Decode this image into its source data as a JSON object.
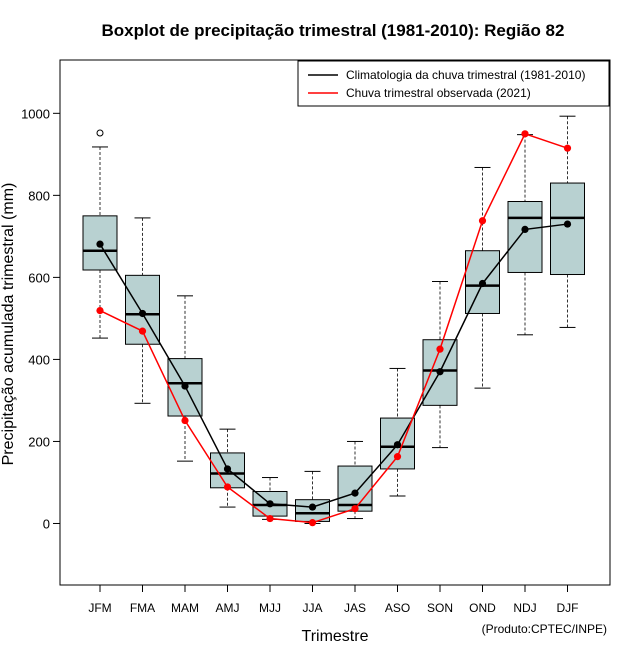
{
  "chart_data": {
    "type": "boxplot",
    "title": "Boxplot de precipitação trimestral (1981-2010): Região 82",
    "xlabel": "Trimestre",
    "ylabel": "Precipitação acumulada trimestral (mm)",
    "ylim": [
      -150,
      1130
    ],
    "yticks": [
      0,
      200,
      400,
      600,
      800,
      1000
    ],
    "credit": "(Produto:CPTEC/INPE)",
    "categories": [
      "JFM",
      "FMA",
      "MAM",
      "AMJ",
      "MJJ",
      "JJA",
      "JAS",
      "ASO",
      "SON",
      "OND",
      "NDJ",
      "DJF"
    ],
    "boxes": [
      {
        "min": 452,
        "q1": 618,
        "median": 665,
        "q3": 750,
        "max": 918,
        "outliers": [
          952
        ]
      },
      {
        "min": 293,
        "q1": 437,
        "median": 510,
        "q3": 605,
        "max": 745,
        "outliers": []
      },
      {
        "min": 152,
        "q1": 262,
        "median": 342,
        "q3": 402,
        "max": 555,
        "outliers": []
      },
      {
        "min": 40,
        "q1": 87,
        "median": 122,
        "q3": 172,
        "max": 230,
        "outliers": []
      },
      {
        "min": 10,
        "q1": 18,
        "median": 45,
        "q3": 78,
        "max": 112,
        "outliers": []
      },
      {
        "min": 0,
        "q1": 5,
        "median": 25,
        "q3": 58,
        "max": 127,
        "outliers": []
      },
      {
        "min": 12,
        "q1": 30,
        "median": 45,
        "q3": 140,
        "max": 200,
        "outliers": []
      },
      {
        "min": 67,
        "q1": 133,
        "median": 187,
        "q3": 257,
        "max": 378,
        "outliers": []
      },
      {
        "min": 185,
        "q1": 288,
        "median": 373,
        "q3": 448,
        "max": 590,
        "outliers": []
      },
      {
        "min": 330,
        "q1": 512,
        "median": 580,
        "q3": 665,
        "max": 868,
        "outliers": []
      },
      {
        "min": 460,
        "q1": 612,
        "median": 745,
        "q3": 785,
        "max": 948,
        "outliers": []
      },
      {
        "min": 478,
        "q1": 607,
        "median": 745,
        "q3": 830,
        "max": 993,
        "outliers": []
      }
    ],
    "series": [
      {
        "name": "Climatologia da chuva trimestral (1981-2010)",
        "color": "#000000",
        "values": [
          681,
          512,
          335,
          133,
          48,
          40,
          74,
          192,
          370,
          585,
          717,
          730
        ]
      },
      {
        "name": "Chuva trimestral observada (2021)",
        "color": "#ff0000",
        "values": [
          519,
          469,
          251,
          89,
          12,
          2,
          36,
          163,
          425,
          738,
          950,
          915
        ]
      }
    ],
    "box_fill": "#b8d1d1",
    "legend_position": "top-right"
  }
}
